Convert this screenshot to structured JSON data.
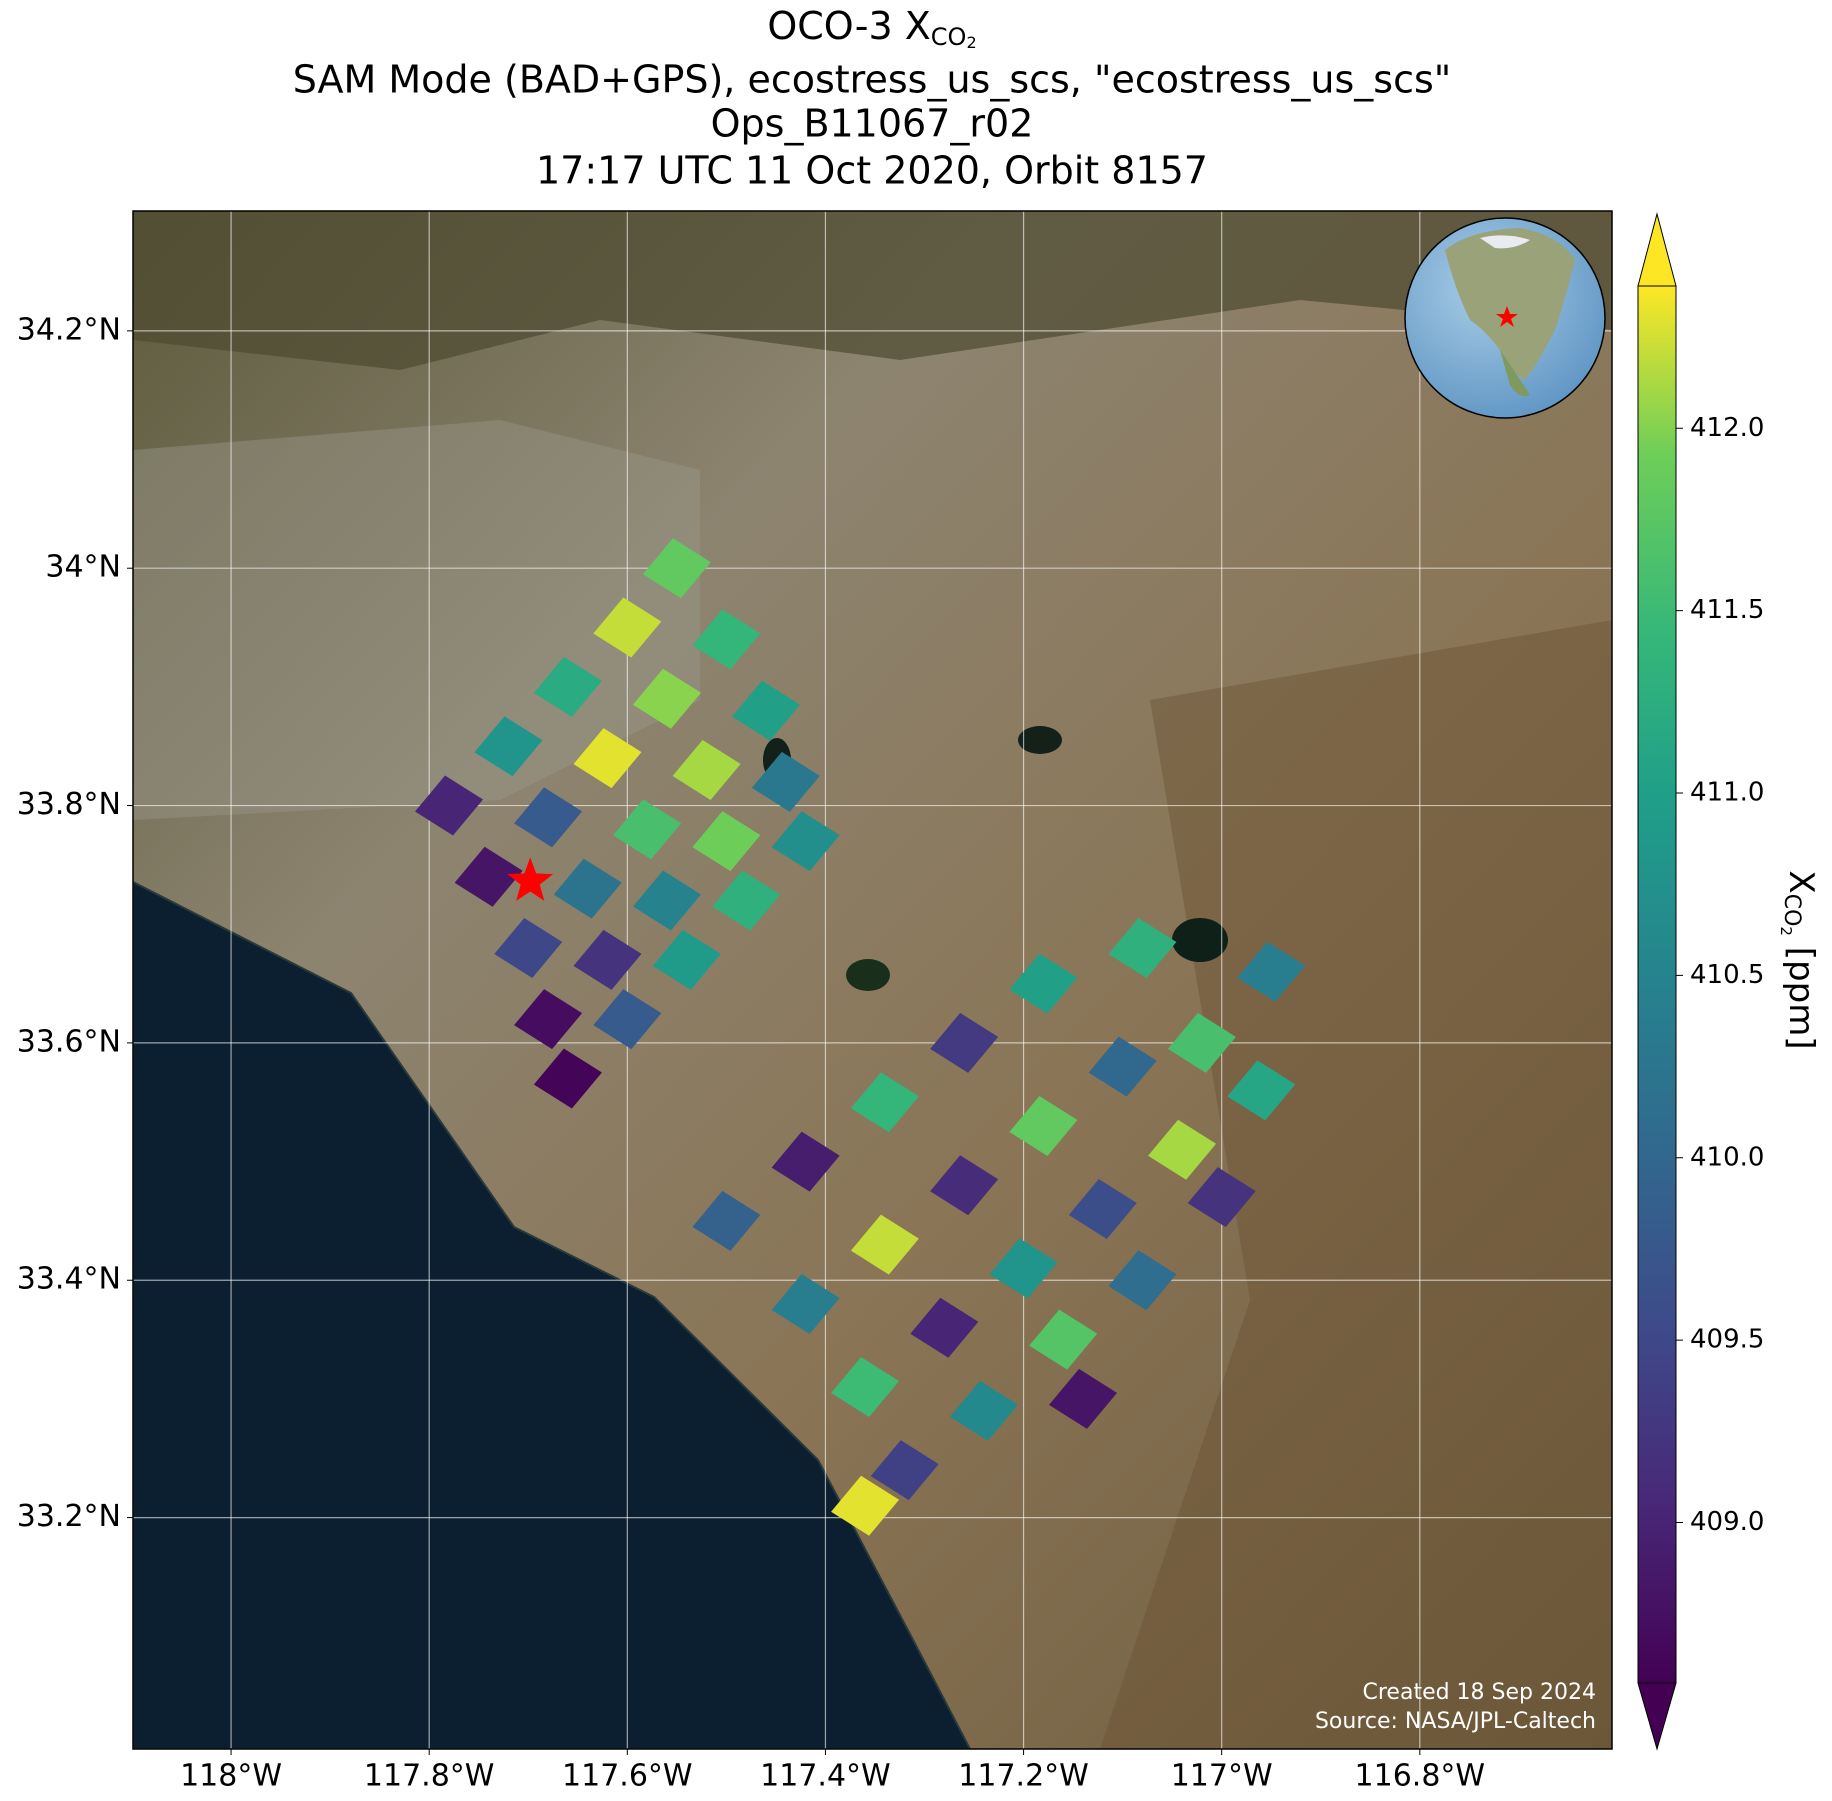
{
  "chart_data": {
    "type": "map",
    "title_prefix": "OCO-3 X",
    "title_subscript": "CO",
    "title_subsubscript": "2",
    "subtitle": "SAM Mode (BAD+GPS), ecostress_us_scs, \"ecostress_us_scs\"",
    "build": "Ops_B11067_r02",
    "time_line": "17:17 UTC 11 Oct 2020, Orbit 8157",
    "xlim": [
      -118.099,
      -116.606
    ],
    "ylim": [
      33.005,
      34.301
    ],
    "xticks": [
      {
        "value": -118,
        "label": "118°W"
      },
      {
        "value": -117.8,
        "label": "117.8°W"
      },
      {
        "value": -117.6,
        "label": "117.6°W"
      },
      {
        "value": -117.4,
        "label": "117.4°W"
      },
      {
        "value": -117.2,
        "label": "117.2°W"
      },
      {
        "value": -117,
        "label": "117°W"
      },
      {
        "value": -116.8,
        "label": "116.8°W"
      }
    ],
    "yticks": [
      {
        "value": 33.2,
        "label": "33.2°N"
      },
      {
        "value": 33.4,
        "label": "33.4°N"
      },
      {
        "value": 33.6,
        "label": "33.6°N"
      },
      {
        "value": 33.8,
        "label": "33.8°N"
      },
      {
        "value": 34,
        "label": "34°N"
      },
      {
        "value": 34.2,
        "label": "34.2°N"
      }
    ],
    "grid": true,
    "colormap": "viridis",
    "clim": [
      408.56,
      412.39
    ],
    "cticks": [
      {
        "value": 409,
        "label": "409.0"
      },
      {
        "value": 409.5,
        "label": "409.5"
      },
      {
        "value": 410,
        "label": "410.0"
      },
      {
        "value": 410.5,
        "label": "410.5"
      },
      {
        "value": 411,
        "label": "411.0"
      },
      {
        "value": 411.5,
        "label": "411.5"
      },
      {
        "value": 412,
        "label": "412.0"
      }
    ],
    "colorbar_label_prefix": "X",
    "colorbar_label_subscript": "CO",
    "colorbar_label_subsubscript": "2",
    "colorbar_label_suffix": " [ppm]",
    "target": {
      "lon": -117.698,
      "lat": 33.736,
      "color": "#ff0000"
    },
    "soundings": {
      "lon": [
        -117.78,
        -117.72,
        -117.66,
        -117.6,
        -117.55,
        -117.74,
        -117.68,
        -117.62,
        -117.56,
        -117.5,
        -117.7,
        -117.64,
        -117.58,
        -117.52,
        -117.46,
        -117.68,
        -117.62,
        -117.56,
        -117.5,
        -117.44,
        -117.66,
        -117.6,
        -117.54,
        -117.48,
        -117.42,
        -117.5,
        -117.42,
        -117.34,
        -117.26,
        -117.18,
        -117.42,
        -117.34,
        -117.26,
        -117.18,
        -117.1,
        -117.02,
        -117.36,
        -117.28,
        -117.2,
        -117.12,
        -117.04,
        -116.96,
        -117.32,
        -117.24,
        -117.16,
        -117.08,
        -117.0,
        -117.36,
        -117.14,
        -117.08,
        -116.95
      ],
      "lat": [
        33.8,
        33.85,
        33.9,
        33.95,
        34.0,
        33.74,
        33.79,
        33.84,
        33.89,
        33.94,
        33.68,
        33.73,
        33.78,
        33.83,
        33.88,
        33.62,
        33.67,
        33.72,
        33.77,
        33.82,
        33.57,
        33.62,
        33.67,
        33.72,
        33.77,
        33.45,
        33.5,
        33.55,
        33.6,
        33.65,
        33.38,
        33.43,
        33.48,
        33.53,
        33.58,
        33.6,
        33.31,
        33.36,
        33.41,
        33.46,
        33.51,
        33.56,
        33.24,
        33.29,
        33.35,
        33.4,
        33.47,
        33.21,
        33.3,
        33.68,
        33.66
      ],
      "xco2": [
        409.0,
        410.8,
        411.2,
        412.2,
        411.8,
        408.8,
        409.8,
        412.3,
        412.0,
        411.4,
        409.5,
        410.2,
        411.6,
        412.1,
        411.0,
        408.7,
        409.2,
        410.5,
        411.9,
        410.3,
        408.6,
        409.8,
        410.9,
        411.3,
        410.7,
        409.9,
        408.9,
        411.4,
        409.3,
        411.0,
        410.4,
        412.2,
        409.1,
        411.8,
        410.0,
        411.6,
        411.5,
        409.0,
        410.8,
        409.6,
        412.1,
        411.1,
        409.4,
        410.6,
        411.7,
        410.1,
        409.2,
        412.3,
        408.8,
        411.3,
        410.4
      ]
    },
    "credit_created": "Created 18 Sep 2024",
    "credit_source": "Source: NASA/JPL-Caltech"
  }
}
